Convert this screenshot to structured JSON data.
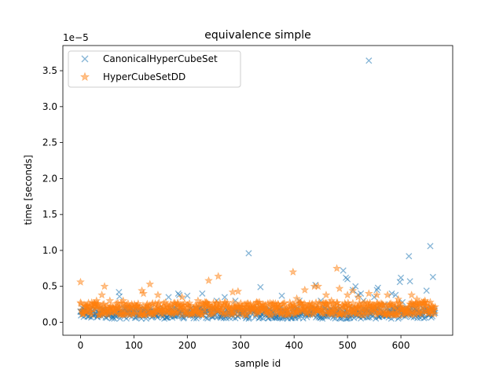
{
  "chart_data": {
    "type": "scatter",
    "title": "equivalence simple",
    "xlabel": "sample id",
    "ylabel": "time [seconds]",
    "y_scale_label": "1e−5",
    "xlim": [
      -33,
      697
    ],
    "ylim": [
      -0.18,
      3.85
    ],
    "x_ticks": [
      0,
      100,
      200,
      300,
      400,
      500,
      600
    ],
    "y_ticks": [
      0.0,
      0.5,
      1.0,
      1.5,
      2.0,
      2.5,
      3.0,
      3.5
    ],
    "x_tick_labels": [
      "0",
      "100",
      "200",
      "300",
      "400",
      "500",
      "600"
    ],
    "y_tick_labels": [
      "0.0",
      "0.5",
      "1.0",
      "1.5",
      "2.0",
      "2.5",
      "3.0",
      "3.5"
    ],
    "legend_position": "top-left",
    "n_samples": 665,
    "series": [
      {
        "name": "CanonicalHyperCubeSet",
        "marker": "x",
        "color": "#1f77b4",
        "typical_range": [
          0.05,
          0.2
        ],
        "outliers": [
          [
            0,
            0.15
          ],
          [
            5,
            0.12
          ],
          [
            72,
            0.42
          ],
          [
            73,
            0.36
          ],
          [
            85,
            0.2
          ],
          [
            165,
            0.35
          ],
          [
            183,
            0.4
          ],
          [
            185,
            0.38
          ],
          [
            200,
            0.37
          ],
          [
            228,
            0.4
          ],
          [
            235,
            0.25
          ],
          [
            255,
            0.3
          ],
          [
            270,
            0.35
          ],
          [
            290,
            0.3
          ],
          [
            315,
            0.96
          ],
          [
            337,
            0.49
          ],
          [
            377,
            0.37
          ],
          [
            410,
            0.3
          ],
          [
            440,
            0.52
          ],
          [
            450,
            0.3
          ],
          [
            458,
            0.2
          ],
          [
            492,
            0.72
          ],
          [
            497,
            0.62
          ],
          [
            500,
            0.6
          ],
          [
            510,
            0.45
          ],
          [
            515,
            0.5
          ],
          [
            520,
            0.38
          ],
          [
            525,
            0.4
          ],
          [
            530,
            0.3
          ],
          [
            540,
            3.64
          ],
          [
            550,
            0.35
          ],
          [
            555,
            0.45
          ],
          [
            557,
            0.48
          ],
          [
            570,
            0.25
          ],
          [
            583,
            0.4
          ],
          [
            590,
            0.38
          ],
          [
            598,
            0.56
          ],
          [
            600,
            0.62
          ],
          [
            603,
            0.28
          ],
          [
            615,
            0.92
          ],
          [
            617,
            0.57
          ],
          [
            623,
            0.25
          ],
          [
            640,
            0.2
          ],
          [
            648,
            0.44
          ],
          [
            655,
            1.06
          ],
          [
            660,
            0.63
          ],
          [
            665,
            0.65
          ]
        ]
      },
      {
        "name": "HyperCubeSetDD",
        "marker": "star",
        "color": "#ff7f0e",
        "typical_range": [
          0.1,
          0.28
        ],
        "outliers": [
          [
            0,
            0.56
          ],
          [
            10,
            0.22
          ],
          [
            30,
            0.3
          ],
          [
            40,
            0.38
          ],
          [
            45,
            0.5
          ],
          [
            55,
            0.3
          ],
          [
            80,
            0.3
          ],
          [
            115,
            0.44
          ],
          [
            118,
            0.4
          ],
          [
            130,
            0.53
          ],
          [
            145,
            0.38
          ],
          [
            190,
            0.35
          ],
          [
            220,
            0.3
          ],
          [
            240,
            0.58
          ],
          [
            258,
            0.64
          ],
          [
            285,
            0.42
          ],
          [
            295,
            0.43
          ],
          [
            310,
            0.25
          ],
          [
            330,
            0.28
          ],
          [
            335,
            0.28
          ],
          [
            370,
            0.25
          ],
          [
            398,
            0.7
          ],
          [
            405,
            0.33
          ],
          [
            420,
            0.45
          ],
          [
            438,
            0.5
          ],
          [
            445,
            0.5
          ],
          [
            460,
            0.38
          ],
          [
            470,
            0.3
          ],
          [
            480,
            0.75
          ],
          [
            485,
            0.47
          ],
          [
            500,
            0.38
          ],
          [
            510,
            0.44
          ],
          [
            520,
            0.35
          ],
          [
            540,
            0.4
          ],
          [
            555,
            0.38
          ],
          [
            575,
            0.38
          ],
          [
            595,
            0.32
          ],
          [
            620,
            0.38
          ],
          [
            630,
            0.32
          ],
          [
            645,
            0.3
          ],
          [
            655,
            0.28
          ]
        ]
      }
    ]
  }
}
